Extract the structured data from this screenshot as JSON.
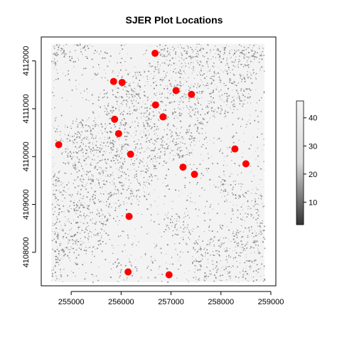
{
  "chart_data": {
    "type": "scatter",
    "title": "SJER Plot Locations",
    "xlabel": "",
    "ylabel": "",
    "xlim": [
      254400,
      259100
    ],
    "ylim": [
      4107300,
      4112500
    ],
    "x_ticks": [
      255000,
      256000,
      257000,
      258000,
      259000
    ],
    "y_ticks": [
      4108000,
      4109000,
      4110000,
      4111000,
      4112000
    ],
    "raster_extent": {
      "x": [
        254600,
        258870
      ],
      "y": [
        4107380,
        4112360
      ]
    },
    "point_color": "#ff0000",
    "series": [
      {
        "x": [
          256680,
          255850,
          256020,
          257100,
          257410,
          256690,
          256840,
          255870,
          255950,
          254750,
          256190,
          258280,
          258500,
          257240,
          257470,
          256160,
          256140,
          256960
        ],
        "y": [
          4112160,
          4111570,
          4111550,
          4111380,
          4111300,
          4111080,
          4110830,
          4110780,
          4110480,
          4110250,
          4110050,
          4110160,
          4109850,
          4109780,
          4109630,
          4108750,
          4107590,
          4107530
        ]
      }
    ],
    "colorbar": {
      "range": [
        2,
        46
      ],
      "ticks": [
        10,
        20,
        30,
        40
      ],
      "colors": [
        "#333333",
        "#d9d9d9",
        "#f5f5f5"
      ]
    }
  }
}
